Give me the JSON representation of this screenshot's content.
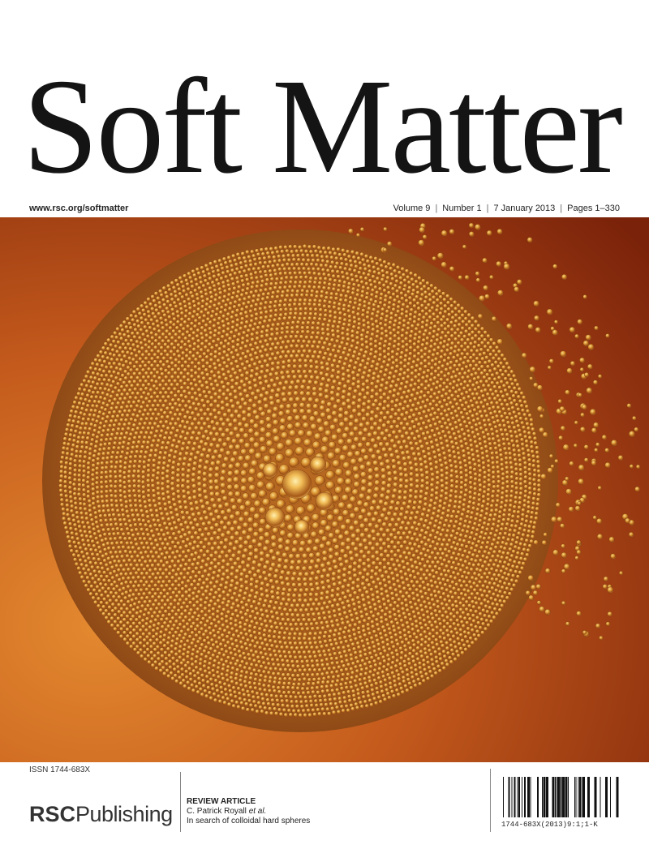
{
  "journal": {
    "title": "Soft Matter",
    "url": "www.rsc.org/softmatter",
    "volume": "Volume 9",
    "number": "Number 1",
    "date": "7 January 2013",
    "pages": "Pages 1–330",
    "issn": "ISSN 1744-683X"
  },
  "publisher": {
    "prefix": "RSC",
    "suffix": "Publishing"
  },
  "review_article": {
    "kind": "REVIEW ARTICLE",
    "authors": "C. Patrick Royall",
    "etal": "et al.",
    "title": "In search of colloidal hard spheres"
  },
  "barcode": {
    "code": "1744-683X(2013)9:1;1-K"
  },
  "colors": {
    "background": "#ffffff",
    "title_text": "#141414",
    "image_dark": "#8a2a0a",
    "image_mid": "#c0561a",
    "image_light": "#e0892f",
    "droplet": "#d48a32",
    "droplet_highlight": "#f6d27a"
  }
}
